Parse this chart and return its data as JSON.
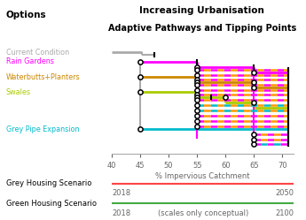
{
  "title1": "Increasing Urbanisation",
  "title2": "Adaptive Pathways and Tipping Points",
  "xlabel": "% Impervious Catchment",
  "xlim": [
    40,
    72
  ],
  "ylim": [
    -0.5,
    10.0
  ],
  "xticks": [
    40,
    45,
    50,
    55,
    60,
    65,
    70
  ],
  "options_label": "Options",
  "options": [
    {
      "name": "Current Condition",
      "color": "#aaaaaa",
      "y": 9.4
    },
    {
      "name": "Rain Gardens",
      "color": "#ff00ff",
      "y": 8.1
    },
    {
      "name": "Waterbutts+Planters",
      "color": "#cc8800",
      "y": 6.2
    },
    {
      "name": "Swales",
      "color": "#aacc00",
      "y": 4.5
    },
    {
      "name": "Grey Pipe Expansion",
      "color": "#00bbcc",
      "y": 2.0
    }
  ],
  "MAGENTA": "#ff00ff",
  "ORANGE": "#ff9900",
  "CYAN": "#00bbcc",
  "LIME": "#aacc00",
  "DARKORANGE": "#cc8800",
  "GRAY": "#aaaaaa",
  "BLACK": "#000000",
  "grey_scenario_label": "Grey Housing Scenario",
  "grey_scenario_color": "#ff4444",
  "green_scenario_label": "Green Housing Scenario",
  "green_scenario_color": "#44aa44",
  "year_labels": {
    "grey_start": "2018",
    "grey_end": "2050",
    "green_start": "2018",
    "green_end": "2100",
    "green_note": "(scales only conceptual)"
  }
}
